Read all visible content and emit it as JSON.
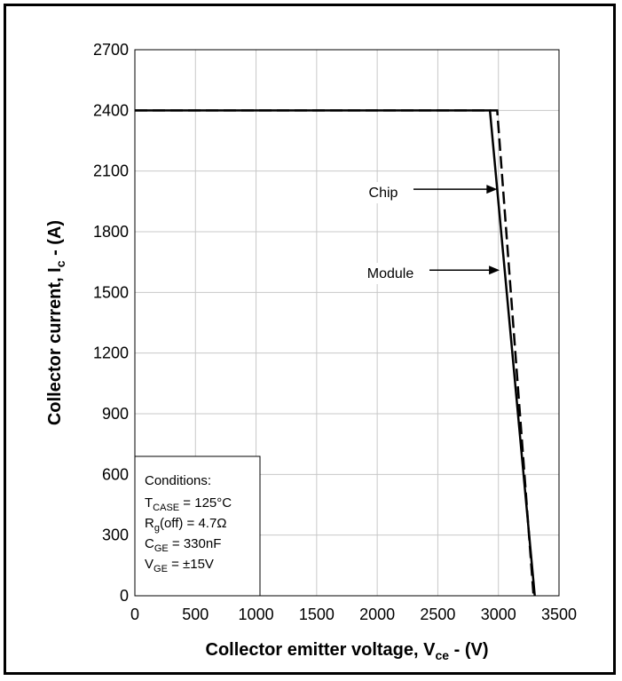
{
  "chart_data": {
    "type": "line",
    "xlabel": {
      "main": "Collector emitter voltage, V",
      "sub": "ce",
      "unit": " - (V)"
    },
    "ylabel": {
      "main": "Collector current, I",
      "sub": "c",
      "unit": " - (A)"
    },
    "xlim": [
      0,
      3500
    ],
    "ylim": [
      0,
      2700
    ],
    "xticks": [
      "0",
      "500",
      "1000",
      "1500",
      "2000",
      "2500",
      "3000",
      "3500"
    ],
    "yticks": [
      "0",
      "300",
      "600",
      "900",
      "1200",
      "1500",
      "1800",
      "2100",
      "2400",
      "2700"
    ],
    "grid": true,
    "series": [
      {
        "name": "Chip",
        "style": "dashed",
        "x": [
          0,
          2990,
          3290
        ],
        "y": [
          2400,
          2400,
          0
        ]
      },
      {
        "name": "Module",
        "style": "solid",
        "x": [
          0,
          2930,
          3300
        ],
        "y": [
          2400,
          2400,
          0
        ]
      }
    ],
    "annotations": [
      {
        "text": "Chip",
        "arrow_to": [
          2990,
          2010
        ]
      },
      {
        "text": "Module",
        "arrow_to": [
          3010,
          1610
        ]
      }
    ],
    "conditions": {
      "title": "Conditions:",
      "lines": [
        {
          "main": "T",
          "sub": "CASE",
          "rest": " = 125°C"
        },
        {
          "main": "R",
          "sub": "g",
          "rest": "(off) = 4.7Ω"
        },
        {
          "main": "C",
          "sub": "GE",
          "rest": " = 330nF"
        },
        {
          "main": "V",
          "sub": "GE",
          "rest": " = ±15V"
        }
      ]
    }
  }
}
